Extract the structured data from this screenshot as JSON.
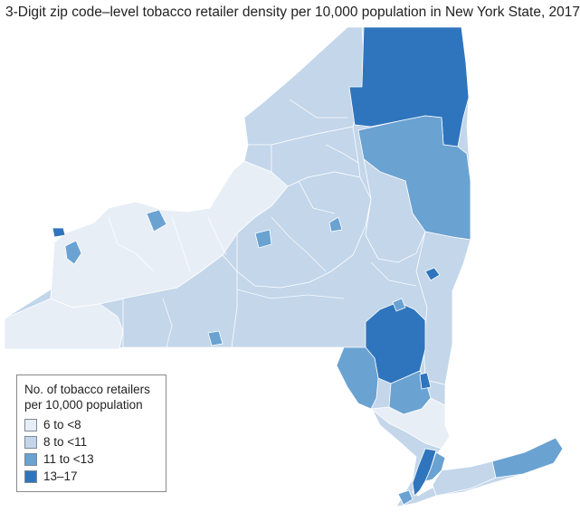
{
  "title": "3-Digit zip code–level tobacco retailer density per 10,000 population in New York State, 2017",
  "colors": {
    "bin_1": "#e8eef6",
    "bin_2": "#c3d6ea",
    "bin_3": "#6aa2d2",
    "bin_4": "#2f75bd",
    "border": "#ffffff"
  },
  "legend": {
    "title_line1": "No. of tobacco retailers",
    "title_line2": "per 10,000 population",
    "items": [
      {
        "label": "6 to <8",
        "color_key": "bin_1"
      },
      {
        "label": "8 to <11",
        "color_key": "bin_2"
      },
      {
        "label": "11 to <13",
        "color_key": "bin_3"
      },
      {
        "label": "13–17",
        "color_key": "bin_4"
      }
    ]
  }
}
